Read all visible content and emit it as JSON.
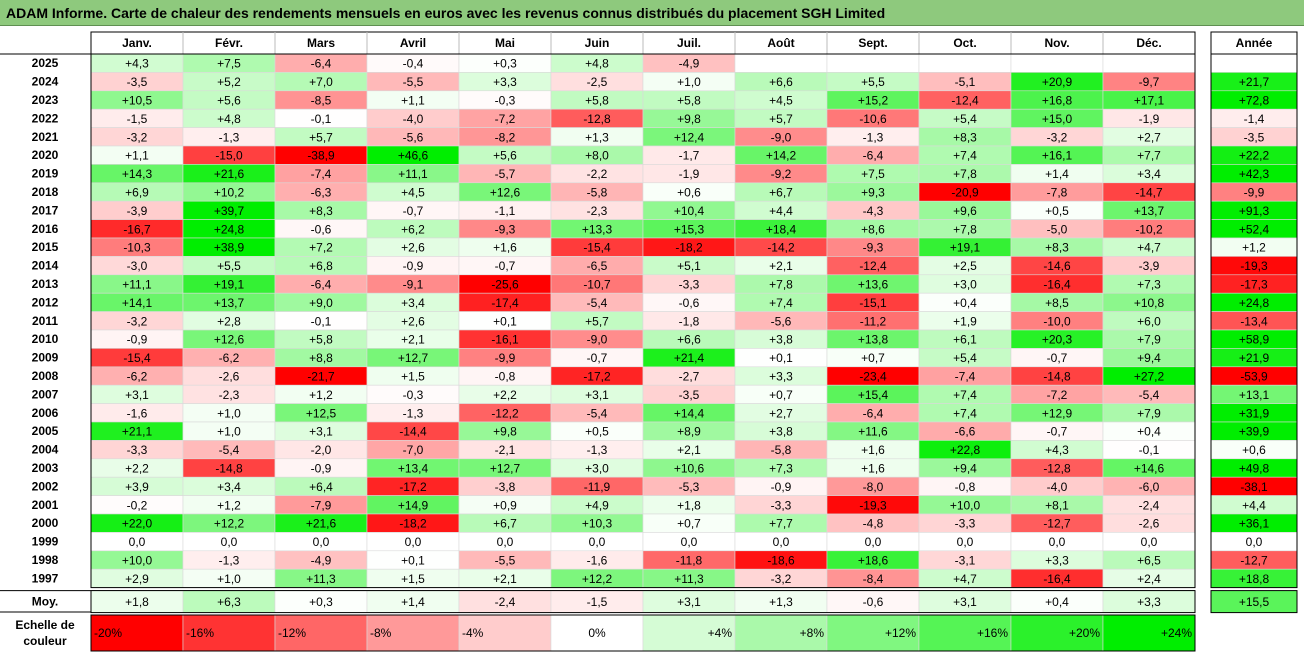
{
  "title": "ADAM Informe. Carte de chaleur des rendements mensuels en euros avec les revenus connus distribués du placement SGH Limited",
  "chart_data": {
    "type": "heatmap",
    "columns": [
      "Janv.",
      "Févr.",
      "Mars",
      "Avril",
      "Mai",
      "Juin",
      "Juil.",
      "Août",
      "Sept.",
      "Oct.",
      "Nov.",
      "Déc."
    ],
    "year_column_label": "Année",
    "unit": "%",
    "rows": [
      {
        "label": "2025",
        "values": [
          4.3,
          7.5,
          -6.4,
          -0.4,
          0.3,
          4.8,
          -4.9,
          null,
          null,
          null,
          null,
          null
        ],
        "year": null
      },
      {
        "label": "2024",
        "values": [
          -3.5,
          5.2,
          7.0,
          -5.5,
          3.3,
          -2.5,
          1.0,
          6.6,
          5.5,
          -5.1,
          20.9,
          -9.7
        ],
        "year": 21.7
      },
      {
        "label": "2023",
        "values": [
          10.5,
          5.6,
          -8.5,
          1.1,
          -0.3,
          5.8,
          5.8,
          4.5,
          15.2,
          -12.4,
          16.8,
          17.1
        ],
        "year": 72.8
      },
      {
        "label": "2022",
        "values": [
          -1.5,
          4.8,
          -0.1,
          -4.0,
          -7.2,
          -12.8,
          9.8,
          5.7,
          -10.6,
          5.4,
          15.0,
          -1.9
        ],
        "year": -1.4
      },
      {
        "label": "2021",
        "values": [
          -3.2,
          -1.3,
          5.7,
          -5.6,
          -8.2,
          1.3,
          12.4,
          -9.0,
          -1.3,
          8.3,
          -3.2,
          2.7
        ],
        "year": -3.5
      },
      {
        "label": "2020",
        "values": [
          1.1,
          -15.0,
          -38.9,
          46.6,
          5.6,
          8.0,
          -1.7,
          14.2,
          -6.4,
          7.4,
          16.1,
          7.7
        ],
        "year": 22.2
      },
      {
        "label": "2019",
        "values": [
          14.3,
          21.6,
          -7.4,
          11.1,
          -5.7,
          -2.2,
          -1.9,
          -9.2,
          7.5,
          7.8,
          1.4,
          3.4
        ],
        "year": 42.3
      },
      {
        "label": "2018",
        "values": [
          6.9,
          10.2,
          -6.3,
          4.5,
          12.6,
          -5.8,
          0.6,
          6.7,
          9.3,
          -20.9,
          -7.8,
          -14.7
        ],
        "year": -9.9
      },
      {
        "label": "2017",
        "values": [
          -3.9,
          39.7,
          8.3,
          -0.7,
          -1.1,
          -2.3,
          10.4,
          4.4,
          -4.3,
          9.6,
          0.5,
          13.7
        ],
        "year": 91.3
      },
      {
        "label": "2016",
        "values": [
          -16.7,
          24.8,
          -0.6,
          6.2,
          -9.3,
          13.3,
          15.3,
          18.4,
          8.6,
          7.8,
          -5.0,
          -10.2
        ],
        "year": 52.4
      },
      {
        "label": "2015",
        "values": [
          -10.3,
          38.9,
          7.2,
          2.6,
          1.6,
          -15.4,
          -18.2,
          -14.2,
          -9.3,
          19.1,
          8.3,
          4.7
        ],
        "year": 1.2
      },
      {
        "label": "2014",
        "values": [
          -3.0,
          5.5,
          6.8,
          -0.9,
          -0.7,
          -6.5,
          5.1,
          2.1,
          -12.4,
          2.5,
          -14.6,
          -3.9
        ],
        "year": -19.3
      },
      {
        "label": "2013",
        "values": [
          11.1,
          19.1,
          -6.4,
          -9.1,
          -25.6,
          -10.7,
          -3.3,
          7.8,
          13.6,
          3.0,
          -16.4,
          7.3
        ],
        "year": -17.3
      },
      {
        "label": "2012",
        "values": [
          14.1,
          13.7,
          9.0,
          3.4,
          -17.4,
          -5.4,
          -0.6,
          7.4,
          -15.1,
          0.4,
          8.5,
          10.8
        ],
        "year": 24.8
      },
      {
        "label": "2011",
        "values": [
          -3.2,
          2.8,
          -0.1,
          2.6,
          0.1,
          5.7,
          -1.8,
          -5.6,
          -11.2,
          1.9,
          -10.0,
          6.0
        ],
        "year": -13.4
      },
      {
        "label": "2010",
        "values": [
          -0.9,
          12.6,
          5.8,
          2.1,
          -16.1,
          -9.0,
          6.6,
          3.8,
          13.8,
          6.1,
          20.3,
          7.9
        ],
        "year": 58.9
      },
      {
        "label": "2009",
        "values": [
          -15.4,
          -6.2,
          8.8,
          12.7,
          -9.9,
          -0.7,
          21.4,
          0.1,
          0.7,
          5.4,
          -0.7,
          9.4
        ],
        "year": 21.9
      },
      {
        "label": "2008",
        "values": [
          -6.2,
          -2.6,
          -21.7,
          1.5,
          -0.8,
          -17.2,
          -2.7,
          3.3,
          -23.4,
          -7.4,
          -14.8,
          27.2
        ],
        "year": -53.9
      },
      {
        "label": "2007",
        "values": [
          3.1,
          -2.3,
          1.2,
          -0.3,
          2.2,
          3.1,
          -3.5,
          0.7,
          15.4,
          7.4,
          -7.2,
          -5.4
        ],
        "year": 13.1
      },
      {
        "label": "2006",
        "values": [
          -1.6,
          1.0,
          12.5,
          -1.3,
          -12.2,
          -5.4,
          14.4,
          2.7,
          -6.4,
          7.4,
          12.9,
          7.9
        ],
        "year": 31.9
      },
      {
        "label": "2005",
        "values": [
          21.1,
          1.0,
          3.1,
          -14.4,
          9.8,
          0.5,
          8.9,
          3.8,
          11.6,
          -6.6,
          -0.7,
          0.4
        ],
        "year": 39.9
      },
      {
        "label": "2004",
        "values": [
          -3.3,
          -5.4,
          -2.0,
          -7.0,
          -2.1,
          -1.3,
          2.1,
          -5.8,
          1.6,
          22.8,
          4.3,
          -0.1
        ],
        "year": 0.6
      },
      {
        "label": "2003",
        "values": [
          2.2,
          -14.8,
          -0.9,
          13.4,
          12.7,
          3.0,
          10.6,
          7.3,
          1.6,
          9.4,
          -12.8,
          14.6
        ],
        "year": 49.8
      },
      {
        "label": "2002",
        "values": [
          3.9,
          3.4,
          6.4,
          -17.2,
          -3.8,
          -11.9,
          -5.3,
          -0.9,
          -8.0,
          -0.8,
          -4.0,
          -6.0
        ],
        "year": -38.1
      },
      {
        "label": "2001",
        "values": [
          -0.2,
          1.2,
          -7.9,
          14.9,
          0.9,
          4.9,
          1.8,
          -3.3,
          -19.3,
          10.0,
          8.1,
          -2.4
        ],
        "year": 4.4
      },
      {
        "label": "2000",
        "values": [
          22.0,
          12.2,
          21.6,
          -18.2,
          6.7,
          10.3,
          0.7,
          7.7,
          -4.8,
          -3.3,
          -12.7,
          -2.6
        ],
        "year": 36.1
      },
      {
        "label": "1999",
        "values": [
          0.0,
          0.0,
          0.0,
          0.0,
          0.0,
          0.0,
          0.0,
          0.0,
          0.0,
          0.0,
          0.0,
          0.0
        ],
        "year": 0.0
      },
      {
        "label": "1998",
        "values": [
          10.0,
          -1.3,
          -4.9,
          0.1,
          -5.5,
          -1.6,
          -11.8,
          -18.6,
          18.6,
          -3.1,
          3.3,
          6.5
        ],
        "year": -12.7
      },
      {
        "label": "1997",
        "values": [
          2.9,
          1.0,
          11.3,
          1.5,
          2.1,
          12.2,
          11.3,
          -3.2,
          -8.4,
          4.7,
          -16.4,
          2.4
        ],
        "year": 18.8
      }
    ],
    "average": {
      "label": "Moy.",
      "values": [
        1.8,
        6.3,
        0.3,
        1.4,
        -2.4,
        -1.5,
        3.1,
        1.3,
        -0.6,
        3.1,
        0.4,
        3.3
      ],
      "year": 15.5
    },
    "color_scale": {
      "label": "Echelle de couleur",
      "stops": [
        -20,
        -16,
        -12,
        -8,
        -4,
        0,
        4,
        8,
        12,
        16,
        20,
        24
      ],
      "stop_labels": [
        "-20%",
        "-16%",
        "-12%",
        "-8%",
        "-4%",
        "0%",
        "+4%",
        "+8%",
        "+12%",
        "+16%",
        "+20%",
        "+24%"
      ],
      "negative_color": "#ff0000",
      "positive_color": "#00ee00",
      "neutral_color": "#ffffff"
    }
  }
}
